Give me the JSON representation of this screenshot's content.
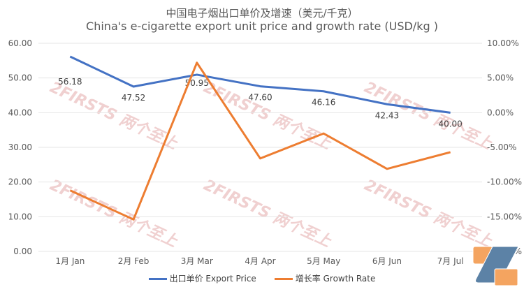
{
  "chart_data": {
    "type": "line",
    "title": "中国电子烟出口单价及增速（美元/千克）",
    "subtitle": "China's e-cigarette export unit price and growth rate (USD/kg )",
    "categories": [
      "1月 Jan",
      "2月 Feb",
      "3月 Mar",
      "4月 Apr",
      "5月 May",
      "6月 Jun",
      "7月 Jul"
    ],
    "y_left": {
      "ticks": [
        "0.00",
        "10.00",
        "20.00",
        "30.00",
        "40.00",
        "50.00",
        "60.00"
      ],
      "range": [
        0,
        60
      ]
    },
    "y_right": {
      "ticks": [
        "-20.00%",
        "-15.00%",
        "-10.00%",
        "-5.00%",
        "0.00%",
        "5.00%",
        "10.00%"
      ],
      "range": [
        -20,
        10
      ]
    },
    "series": [
      {
        "name": "出口单价 Export Price",
        "axis": "left",
        "color": "#4472C4",
        "values": [
          56.18,
          47.52,
          50.95,
          47.6,
          46.16,
          42.43,
          40.0
        ],
        "labels": [
          "56.18",
          "47.52",
          "50.95",
          "47.60",
          "46.16",
          "42.43",
          "40.00"
        ]
      },
      {
        "name": "增长率 Growth Rate",
        "axis": "right",
        "color": "#ED7D31",
        "values": [
          -11.2,
          -15.4,
          7.2,
          -6.6,
          -3.0,
          -8.1,
          -5.7
        ]
      }
    ],
    "legend_position": "bottom",
    "watermark": "2FIRSTS 两个至上"
  }
}
